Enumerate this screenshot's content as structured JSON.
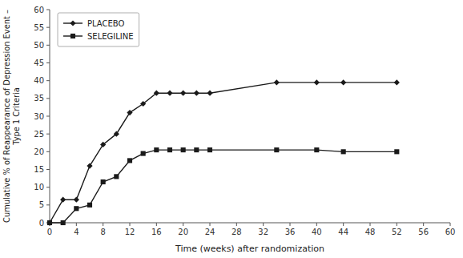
{
  "chart_data": {
    "type": "line",
    "x": [
      0,
      2,
      4,
      6,
      8,
      10,
      12,
      14,
      16,
      18,
      20,
      22,
      24,
      34,
      40,
      44,
      52
    ],
    "xlabel": "Time (weeks) after randomization",
    "ylabel": "Cumulative % of Reappearance of Depression Event –\nType 1 Criteria",
    "series": [
      {
        "name": "PLACEBO",
        "color": "#1a1a1a",
        "marker": "diamond",
        "values": [
          0,
          6.5,
          6.5,
          16,
          22,
          25,
          31,
          33.5,
          36.5,
          36.5,
          36.5,
          36.5,
          36.5,
          39.5,
          39.5,
          39.5,
          39.5
        ]
      },
      {
        "name": "SELEGILINE",
        "color": "#1a1a1a",
        "marker": "square",
        "values": [
          0,
          0,
          4,
          5,
          11.5,
          13,
          17.5,
          19.5,
          20.5,
          20.5,
          20.5,
          20.5,
          20.5,
          20.5,
          20.5,
          20.0,
          20.0
        ]
      }
    ],
    "xlim": [
      0,
      60
    ],
    "ylim": [
      0,
      60
    ],
    "xticks": [
      0,
      4,
      8,
      12,
      16,
      20,
      24,
      28,
      32,
      36,
      40,
      44,
      48,
      52,
      56,
      60
    ],
    "yticks": [
      0,
      5,
      10,
      15,
      20,
      25,
      30,
      35,
      40,
      45,
      50,
      55,
      60
    ],
    "grid": false,
    "legend": "upper left"
  }
}
